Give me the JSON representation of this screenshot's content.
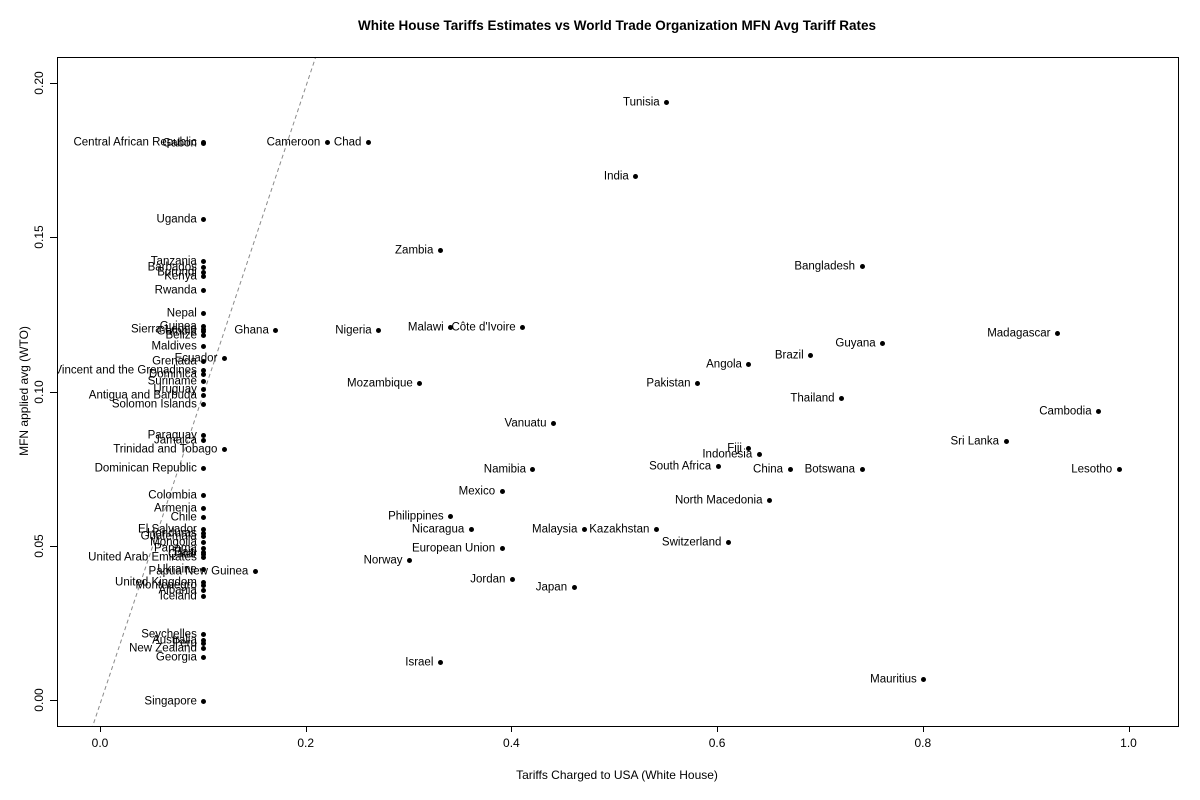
{
  "chart_data": {
    "type": "scatter",
    "title": "White House Tariffs Estimates vs World Trade Organization MFN Avg Tariff Rates",
    "xlabel": "Tariffs Charged to USA (White House)",
    "ylabel": "MFN applied avg (WTO)",
    "xlim": [
      -0.04,
      1.05
    ],
    "ylim": [
      -0.004,
      0.208
    ],
    "grid": false,
    "legend": "none",
    "point_color": "#000000",
    "identity_line": {
      "style": "dashed",
      "color": "#8a8a8a",
      "from": -0.02,
      "to": 0.215
    },
    "x_ticks": [
      {
        "v": 0.0,
        "label": "0.0"
      },
      {
        "v": 0.2,
        "label": "0.2"
      },
      {
        "v": 0.4,
        "label": "0.4"
      },
      {
        "v": 0.6,
        "label": "0.6"
      },
      {
        "v": 0.8,
        "label": "0.8"
      },
      {
        "v": 1.0,
        "label": "1.0"
      }
    ],
    "y_ticks": [
      {
        "v": 0.0,
        "label": "0.00"
      },
      {
        "v": 0.05,
        "label": "0.05"
      },
      {
        "v": 0.1,
        "label": "0.10"
      },
      {
        "v": 0.15,
        "label": "0.15"
      },
      {
        "v": 0.2,
        "label": "0.20"
      }
    ],
    "points": [
      {
        "label": "Tunisia",
        "x": 0.55,
        "y": 0.194
      },
      {
        "label": "Central African Republic",
        "x": 0.1,
        "y": 0.1812
      },
      {
        "label": "Gabon",
        "x": 0.1,
        "y": 0.1806
      },
      {
        "label": "Cameroon",
        "x": 0.22,
        "y": 0.181
      },
      {
        "label": "Chad",
        "x": 0.26,
        "y": 0.181
      },
      {
        "label": "India",
        "x": 0.52,
        "y": 0.17
      },
      {
        "label": "Uganda",
        "x": 0.1,
        "y": 0.156
      },
      {
        "label": "Zambia",
        "x": 0.33,
        "y": 0.146
      },
      {
        "label": "Tanzania",
        "x": 0.1,
        "y": 0.1425
      },
      {
        "label": "Barbados",
        "x": 0.1,
        "y": 0.1405
      },
      {
        "label": "Burundi",
        "x": 0.1,
        "y": 0.139
      },
      {
        "label": "Kenya",
        "x": 0.1,
        "y": 0.1375
      },
      {
        "label": "Bangladesh",
        "x": 0.74,
        "y": 0.141
      },
      {
        "label": "Rwanda",
        "x": 0.1,
        "y": 0.133
      },
      {
        "label": "Nepal",
        "x": 0.1,
        "y": 0.1255
      },
      {
        "label": "Guinea",
        "x": 0.1,
        "y": 0.1215
      },
      {
        "label": "Sierra Leone",
        "x": 0.1,
        "y": 0.1205
      },
      {
        "label": "Gambia",
        "x": 0.1,
        "y": 0.1198
      },
      {
        "label": "Belize",
        "x": 0.1,
        "y": 0.1185
      },
      {
        "label": "Ghana",
        "x": 0.17,
        "y": 0.12
      },
      {
        "label": "Nigeria",
        "x": 0.27,
        "y": 0.12
      },
      {
        "label": "Malawi",
        "x": 0.34,
        "y": 0.1212
      },
      {
        "label": "Côte d'Ivoire",
        "x": 0.41,
        "y": 0.1212
      },
      {
        "label": "Madagascar",
        "x": 0.93,
        "y": 0.119
      },
      {
        "label": "Guyana",
        "x": 0.76,
        "y": 0.116
      },
      {
        "label": "Maldives",
        "x": 0.1,
        "y": 0.115
      },
      {
        "label": "Brazil",
        "x": 0.69,
        "y": 0.112
      },
      {
        "label": "Ecuador",
        "x": 0.12,
        "y": 0.111
      },
      {
        "label": "Grenada",
        "x": 0.1,
        "y": 0.11
      },
      {
        "label": "Angola",
        "x": 0.63,
        "y": 0.109
      },
      {
        "label": "St Vincent and the Grenadines",
        "x": 0.1,
        "y": 0.107
      },
      {
        "label": "Dominica",
        "x": 0.1,
        "y": 0.1058
      },
      {
        "label": "Suriname",
        "x": 0.1,
        "y": 0.1035
      },
      {
        "label": "Pakistan",
        "x": 0.58,
        "y": 0.103
      },
      {
        "label": "Mozambique",
        "x": 0.31,
        "y": 0.103
      },
      {
        "label": "Uruguay",
        "x": 0.1,
        "y": 0.101
      },
      {
        "label": "Antigua and Barbuda",
        "x": 0.1,
        "y": 0.099
      },
      {
        "label": "Thailand",
        "x": 0.72,
        "y": 0.098
      },
      {
        "label": "Solomon Islands",
        "x": 0.1,
        "y": 0.096
      },
      {
        "label": "Cambodia",
        "x": 0.97,
        "y": 0.094
      },
      {
        "label": "Vanuatu",
        "x": 0.44,
        "y": 0.09
      },
      {
        "label": "Paraguay",
        "x": 0.1,
        "y": 0.086
      },
      {
        "label": "Jamaica",
        "x": 0.1,
        "y": 0.0845
      },
      {
        "label": "Sri Lanka",
        "x": 0.88,
        "y": 0.084
      },
      {
        "label": "Fiji",
        "x": 0.63,
        "y": 0.082
      },
      {
        "label": "Trinidad and Tobago",
        "x": 0.12,
        "y": 0.0815
      },
      {
        "label": "Indonesia",
        "x": 0.64,
        "y": 0.08
      },
      {
        "label": "South Africa",
        "x": 0.6,
        "y": 0.076
      },
      {
        "label": "Dominican Republic",
        "x": 0.1,
        "y": 0.0755
      },
      {
        "label": "China",
        "x": 0.67,
        "y": 0.075
      },
      {
        "label": "Botswana",
        "x": 0.74,
        "y": 0.075
      },
      {
        "label": "Lesotho",
        "x": 0.99,
        "y": 0.075
      },
      {
        "label": "Namibia",
        "x": 0.42,
        "y": 0.075
      },
      {
        "label": "Mexico",
        "x": 0.39,
        "y": 0.068
      },
      {
        "label": "Colombia",
        "x": 0.1,
        "y": 0.0665
      },
      {
        "label": "North Macedonia",
        "x": 0.65,
        "y": 0.065
      },
      {
        "label": "Armenia",
        "x": 0.1,
        "y": 0.0625
      },
      {
        "label": "Philippines",
        "x": 0.34,
        "y": 0.06
      },
      {
        "label": "Chile",
        "x": 0.1,
        "y": 0.0595
      },
      {
        "label": "El Salvador",
        "x": 0.1,
        "y": 0.0555
      },
      {
        "label": "Honduras",
        "x": 0.1,
        "y": 0.0545
      },
      {
        "label": "Guatemala",
        "x": 0.1,
        "y": 0.0535
      },
      {
        "label": "Nicaragua",
        "x": 0.36,
        "y": 0.0555
      },
      {
        "label": "Malaysia",
        "x": 0.47,
        "y": 0.0555
      },
      {
        "label": "Kazakhstan",
        "x": 0.54,
        "y": 0.0555
      },
      {
        "label": "Mongolia",
        "x": 0.1,
        "y": 0.0515
      },
      {
        "label": "Switzerland",
        "x": 0.61,
        "y": 0.0515
      },
      {
        "label": "European Union",
        "x": 0.39,
        "y": 0.0495
      },
      {
        "label": "Panama",
        "x": 0.1,
        "y": 0.0495
      },
      {
        "label": "Haiti",
        "x": 0.1,
        "y": 0.0483
      },
      {
        "label": "Qatar",
        "x": 0.1,
        "y": 0.0474
      },
      {
        "label": "United Arab Emirates",
        "x": 0.1,
        "y": 0.0466
      },
      {
        "label": "Norway",
        "x": 0.3,
        "y": 0.0455
      },
      {
        "label": "Ukraine",
        "x": 0.1,
        "y": 0.0428
      },
      {
        "label": "Papua New Guinea",
        "x": 0.15,
        "y": 0.042
      },
      {
        "label": "Jordan",
        "x": 0.4,
        "y": 0.0395
      },
      {
        "label": "United Kingdom",
        "x": 0.1,
        "y": 0.0385
      },
      {
        "label": "Montenegro",
        "x": 0.1,
        "y": 0.0375
      },
      {
        "label": "Japan",
        "x": 0.46,
        "y": 0.037
      },
      {
        "label": "Albania",
        "x": 0.1,
        "y": 0.0358
      },
      {
        "label": "Iceland",
        "x": 0.1,
        "y": 0.034
      },
      {
        "label": "Seychelles",
        "x": 0.1,
        "y": 0.0215
      },
      {
        "label": "Australia",
        "x": 0.1,
        "y": 0.0196
      },
      {
        "label": "Peru",
        "x": 0.1,
        "y": 0.0188
      },
      {
        "label": "New Zealand",
        "x": 0.1,
        "y": 0.017
      },
      {
        "label": "Georgia",
        "x": 0.1,
        "y": 0.014
      },
      {
        "label": "Israel",
        "x": 0.33,
        "y": 0.0125
      },
      {
        "label": "Mauritius",
        "x": 0.8,
        "y": 0.007
      },
      {
        "label": "Singapore",
        "x": 0.1,
        "y": 0.0
      }
    ]
  }
}
